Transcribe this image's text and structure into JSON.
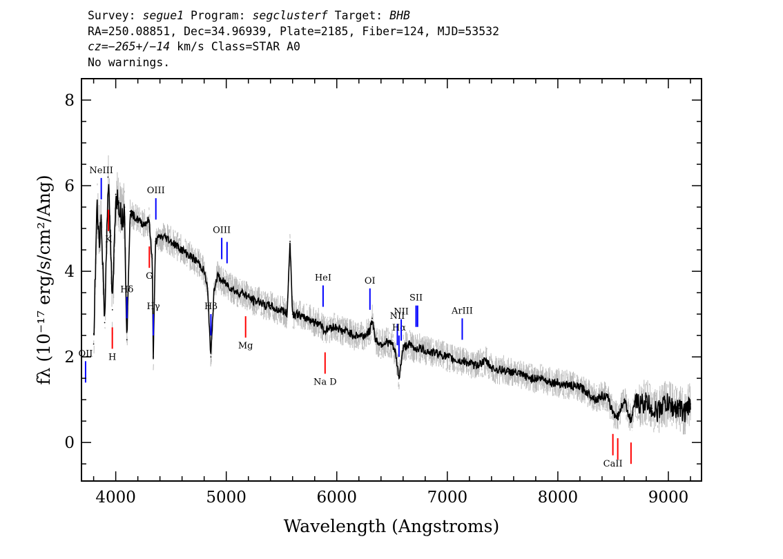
{
  "header": {
    "line1": {
      "survey_label": "Survey:",
      "survey": "segue1",
      "program_label": "Program:",
      "program": "segclusterf",
      "target_label": "Target:",
      "target": "BHB"
    },
    "line2": "RA=250.08851, Dec=34.96939, Plate=2185, Fiber=124, MJD=53532",
    "line3": {
      "cz": "cz=−265+/−14",
      "rest": " km/s Class=STAR A0"
    },
    "line4": "No warnings."
  },
  "chart_data": {
    "type": "line",
    "xlabel": "Wavelength (Angstroms)",
    "ylabel": "fλ (10⁻¹⁷ erg/s/cm²/Ang)",
    "xlim": [
      3690,
      9300
    ],
    "ylim": [
      -0.9,
      8.5
    ],
    "xticks": [
      4000,
      5000,
      6000,
      7000,
      8000,
      9000
    ],
    "yticks": [
      0,
      2,
      4,
      6,
      8
    ],
    "grid": false,
    "series": [
      {
        "color": "#000000",
        "x": [
          3800,
          3830,
          3850,
          3870,
          3900,
          3930,
          3950,
          3970,
          4000,
          4030,
          4060,
          4080,
          4101,
          4130,
          4160,
          4200,
          4250,
          4300,
          4330,
          4340,
          4360,
          4400,
          4450,
          4500,
          4550,
          4600,
          4650,
          4700,
          4750,
          4800,
          4830,
          4861,
          4890,
          4920,
          4950,
          5000,
          5050,
          5100,
          5150,
          5200,
          5250,
          5300,
          5350,
          5400,
          5450,
          5500,
          5550,
          5577,
          5600,
          5650,
          5700,
          5750,
          5800,
          5850,
          5890,
          5950,
          6000,
          6050,
          6100,
          6150,
          6200,
          6250,
          6300,
          6320,
          6350,
          6400,
          6450,
          6500,
          6530,
          6563,
          6600,
          6650,
          6700,
          6750,
          6800,
          6850,
          6900,
          6950,
          7000,
          7050,
          7100,
          7150,
          7200,
          7250,
          7300,
          7350,
          7400,
          7450,
          7500,
          7550,
          7600,
          7650,
          7700,
          7750,
          7800,
          7850,
          7900,
          7950,
          8000,
          8050,
          8100,
          8150,
          8200,
          8250,
          8300,
          8350,
          8400,
          8450,
          8498,
          8542,
          8600,
          8662,
          8700,
          8750,
          8800,
          8850,
          8900,
          8950,
          9000,
          9050,
          9100,
          9150,
          9200
        ],
        "y": [
          2.3,
          5.5,
          4.8,
          5.2,
          2.8,
          6.2,
          4.9,
          3.1,
          5.8,
          5.6,
          5.2,
          5.5,
          2.4,
          5.4,
          5.3,
          5.2,
          5.1,
          5.2,
          4.3,
          2.0,
          4.7,
          4.8,
          4.8,
          4.7,
          4.6,
          4.5,
          4.4,
          4.3,
          4.2,
          4.0,
          3.6,
          2.0,
          3.6,
          3.9,
          3.8,
          3.7,
          3.6,
          3.5,
          3.5,
          3.4,
          3.3,
          3.3,
          3.2,
          3.2,
          3.1,
          3.1,
          3.0,
          4.7,
          3.0,
          3.0,
          2.9,
          2.9,
          2.8,
          2.8,
          2.6,
          2.7,
          2.7,
          2.6,
          2.6,
          2.5,
          2.5,
          2.5,
          2.6,
          2.9,
          2.4,
          2.3,
          2.35,
          2.3,
          2.1,
          1.5,
          2.2,
          2.3,
          2.2,
          2.2,
          2.15,
          2.1,
          2.1,
          2.05,
          2.0,
          1.95,
          1.9,
          1.9,
          1.85,
          1.8,
          1.85,
          1.9,
          1.75,
          1.7,
          1.7,
          1.65,
          1.65,
          1.6,
          1.55,
          1.5,
          1.5,
          1.5,
          1.45,
          1.4,
          1.4,
          1.35,
          1.35,
          1.3,
          1.3,
          1.2,
          1.1,
          1.0,
          1.1,
          1.05,
          0.7,
          0.6,
          1.0,
          0.5,
          0.95,
          0.9,
          0.95,
          0.8,
          0.7,
          0.9,
          0.9,
          0.8,
          0.8,
          0.7,
          0.9
        ]
      }
    ],
    "lines": [
      {
        "label": "OII",
        "x": 3727,
        "color": "#0000ff",
        "pos": "top"
      },
      {
        "label": "NeIII",
        "x": 3869,
        "color": "#0000ff",
        "pos": "top"
      },
      {
        "label": "Hδ",
        "x": 4101,
        "color": "#0000ff",
        "pos": "top"
      },
      {
        "label": "Hγ",
        "x": 4340,
        "color": "#0000ff",
        "pos": "top"
      },
      {
        "label": "OIII",
        "x": 4363,
        "color": "#0000ff",
        "pos": "top"
      },
      {
        "label": "Hβ",
        "x": 4861,
        "color": "#0000ff",
        "pos": "top"
      },
      {
        "label": "OIII",
        "x": 4959,
        "color": "#0000ff",
        "pos": "top"
      },
      {
        "label": "",
        "x": 5007,
        "color": "#0000ff",
        "pos": "top"
      },
      {
        "label": "HeI",
        "x": 5876,
        "color": "#0000ff",
        "pos": "top"
      },
      {
        "label": "OI",
        "x": 6300,
        "color": "#0000ff",
        "pos": "top"
      },
      {
        "label": "NII",
        "x": 6548,
        "color": "#0000ff",
        "pos": "top"
      },
      {
        "label": "Hα",
        "x": 6563,
        "color": "#0000ff",
        "pos": "top"
      },
      {
        "label": "NII",
        "x": 6583,
        "color": "#0000ff",
        "pos": "top"
      },
      {
        "label": "SII",
        "x": 6717,
        "color": "#0000ff",
        "pos": "top"
      },
      {
        "label": "",
        "x": 6731,
        "color": "#0000ff",
        "pos": "top"
      },
      {
        "label": "ArIII",
        "x": 7135,
        "color": "#0000ff",
        "pos": "top"
      },
      {
        "label": "K",
        "x": 3934,
        "color": "#ff0000",
        "pos": "bottom"
      },
      {
        "label": "H",
        "x": 3969,
        "color": "#ff0000",
        "pos": "bottom"
      },
      {
        "label": "G",
        "x": 4304,
        "color": "#ff0000",
        "pos": "bottom"
      },
      {
        "label": "Mg",
        "x": 5175,
        "color": "#ff0000",
        "pos": "bottom"
      },
      {
        "label": "Na D",
        "x": 5894,
        "color": "#ff0000",
        "pos": "bottom"
      },
      {
        "label": "CaII",
        "x": 8498,
        "color": "#ff0000",
        "pos": "bottom"
      },
      {
        "label": "",
        "x": 8542,
        "color": "#ff0000",
        "pos": "bottom"
      },
      {
        "label": "",
        "x": 8662,
        "color": "#ff0000",
        "pos": "bottom"
      }
    ]
  },
  "colors": {
    "flux": "#000000",
    "error": "#bbbbbb",
    "emission": "#0000ff",
    "absorption": "#ff0000"
  }
}
